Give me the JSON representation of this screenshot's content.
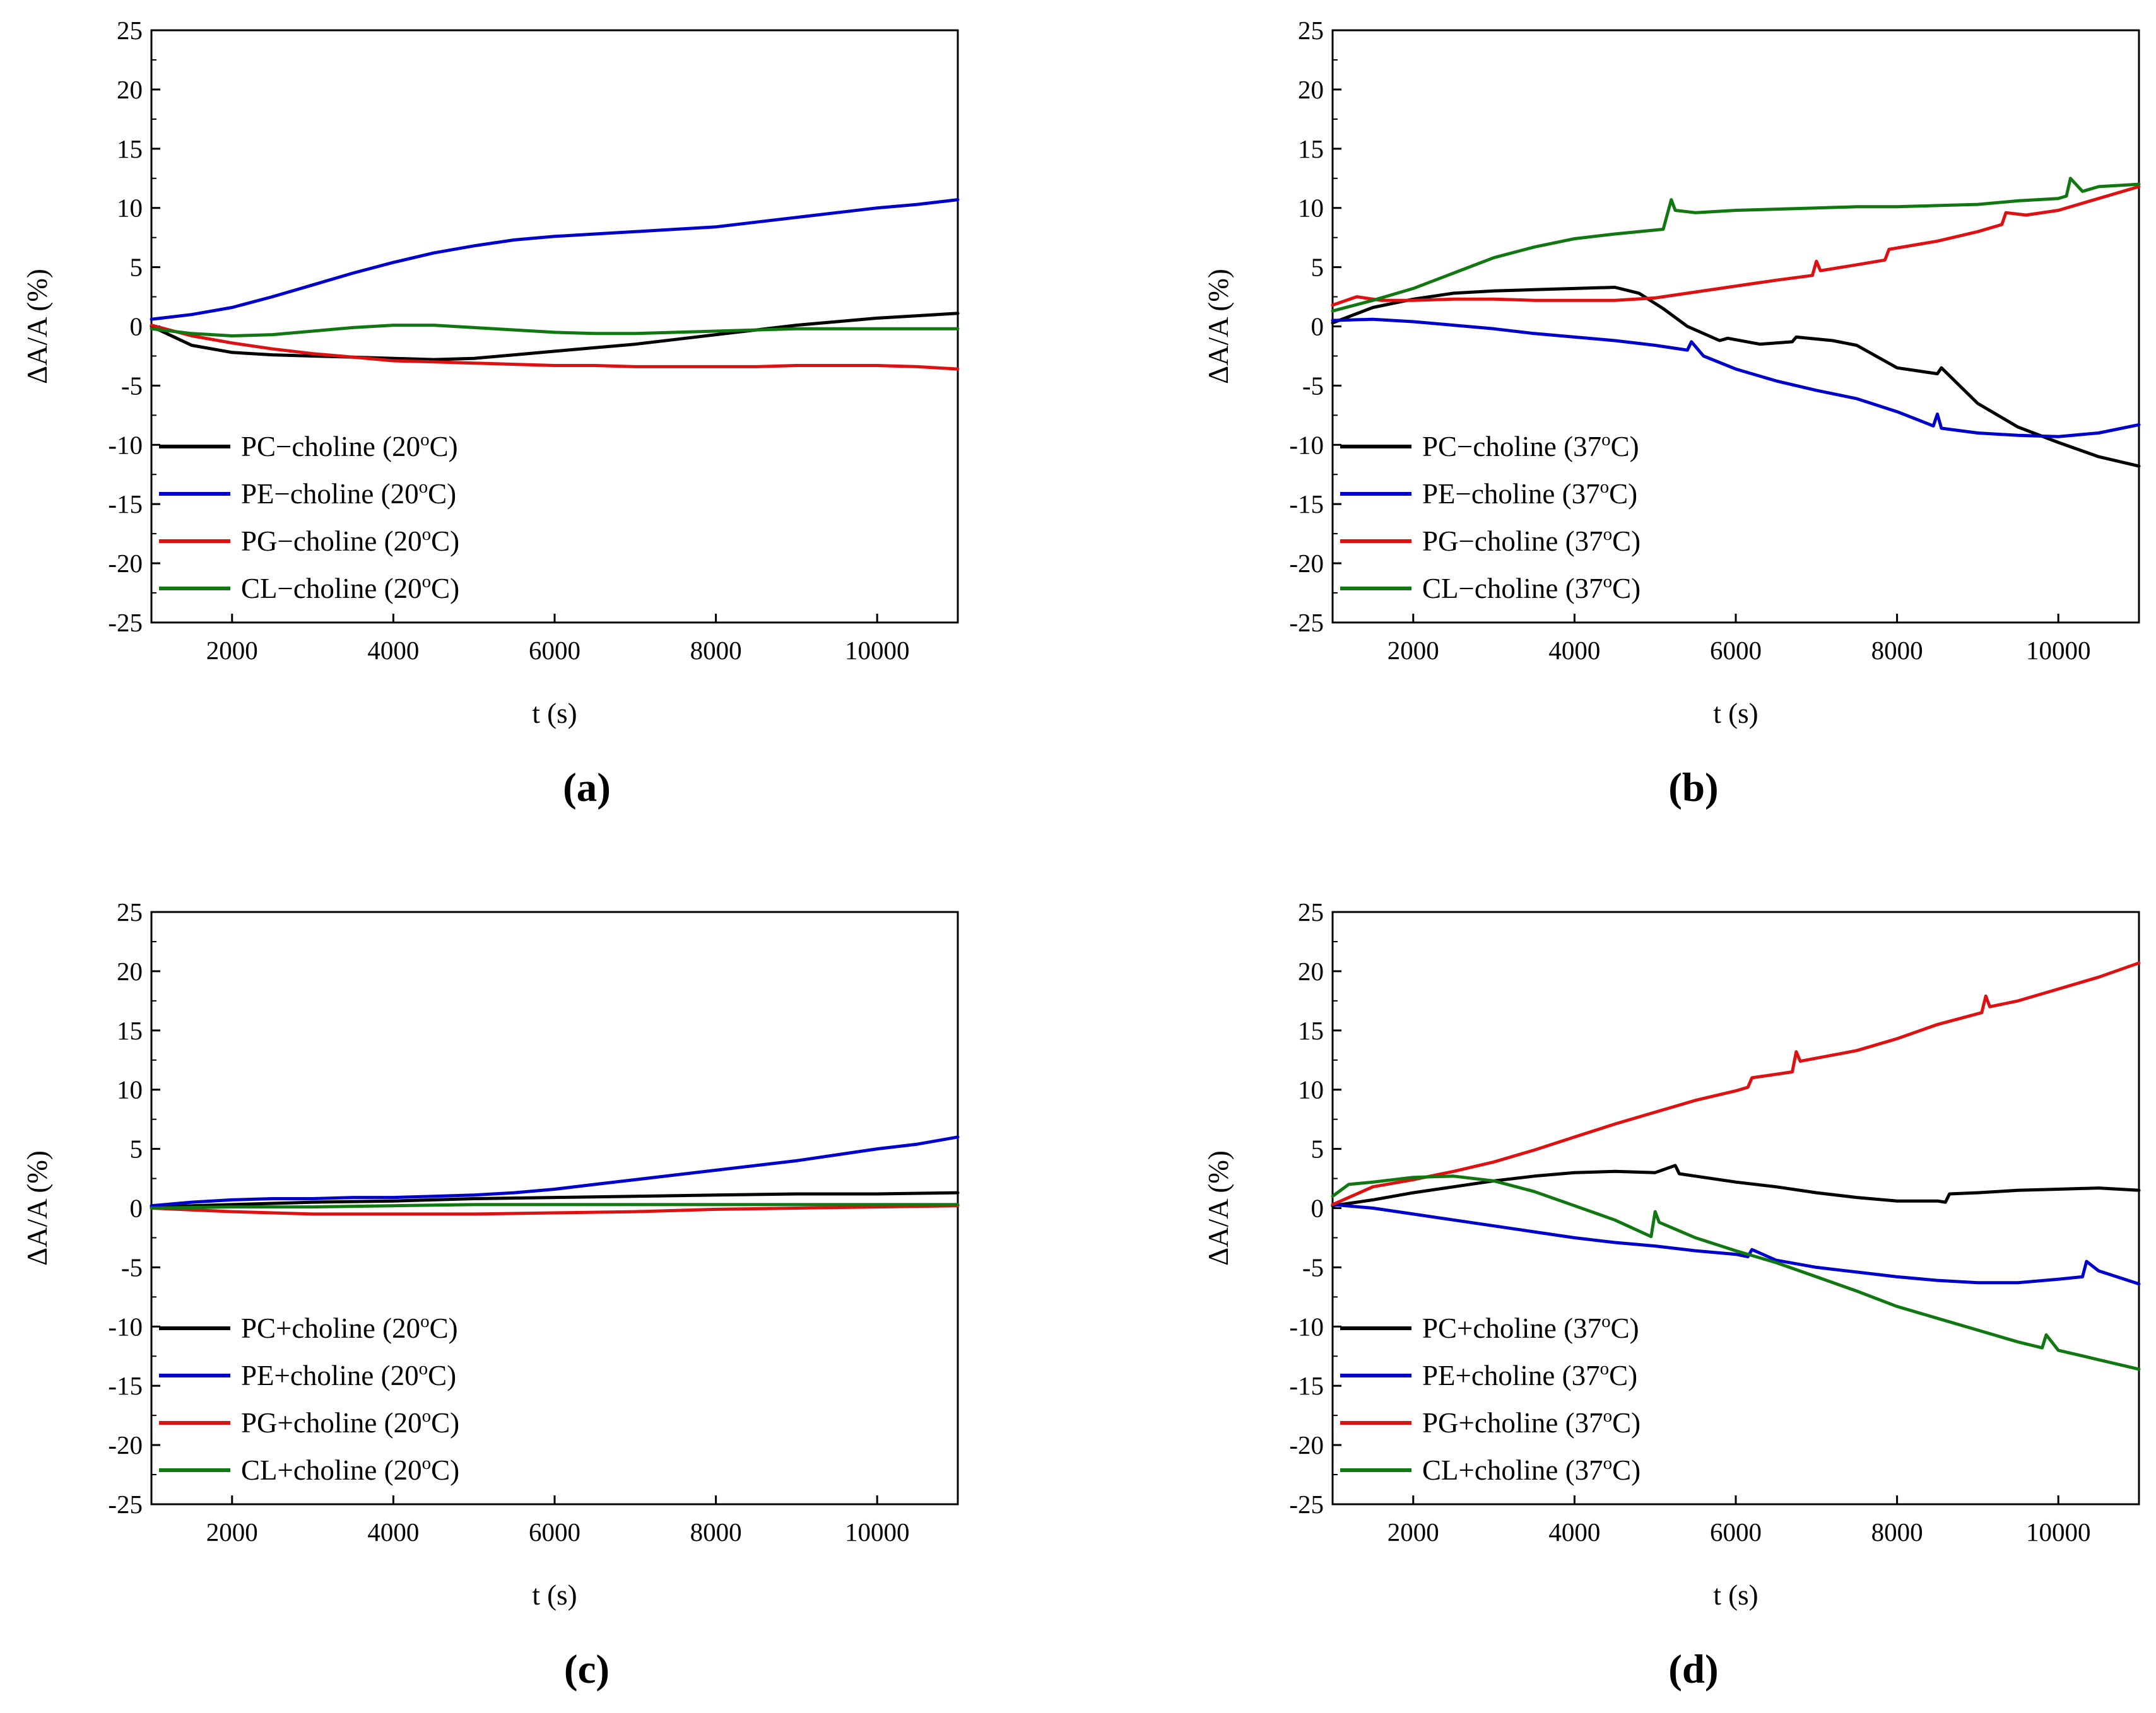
{
  "chart_data": [
    {
      "panel_label": "(a)",
      "type": "line",
      "xlabel": "t (s)",
      "ylabel": "ΔA/A (%)",
      "xlim": [
        1000,
        11000
      ],
      "ylim": [
        -25,
        25
      ],
      "xticks": [
        2000,
        4000,
        6000,
        8000,
        10000
      ],
      "yticks": [
        25,
        20,
        15,
        10,
        5,
        0,
        -5,
        -10,
        -15,
        -20,
        -25
      ],
      "grid": false,
      "legend_position": "lower-left",
      "series": [
        {
          "name": "PC−choline (20",
          "sup": "o",
          "suffix": "C)",
          "color": "#000000",
          "x": [
            1000,
            1500,
            2000,
            2500,
            3000,
            3500,
            4000,
            4500,
            5000,
            5500,
            6000,
            6500,
            7000,
            7500,
            8000,
            8500,
            9000,
            9500,
            10000,
            10500,
            11000
          ],
          "y": [
            0,
            -1.6,
            -2.2,
            -2.4,
            -2.5,
            -2.6,
            -2.7,
            -2.8,
            -2.7,
            -2.4,
            -2.1,
            -1.8,
            -1.5,
            -1.1,
            -0.7,
            -0.3,
            0.1,
            0.4,
            0.7,
            0.9,
            1.1
          ]
        },
        {
          "name": "PE−choline (20",
          "sup": "o",
          "suffix": "C)",
          "color": "#0000cc",
          "x": [
            1000,
            1500,
            2000,
            2500,
            3000,
            3500,
            4000,
            4500,
            5000,
            5500,
            6000,
            6500,
            7000,
            7500,
            8000,
            8500,
            9000,
            9500,
            10000,
            10500,
            11000
          ],
          "y": [
            0.6,
            1.0,
            1.6,
            2.5,
            3.5,
            4.5,
            5.4,
            6.2,
            6.8,
            7.3,
            7.6,
            7.8,
            8.0,
            8.2,
            8.4,
            8.8,
            9.2,
            9.6,
            10.0,
            10.3,
            10.7
          ]
        },
        {
          "name": "PG−choline (20",
          "sup": "o",
          "suffix": "C)",
          "color": "#dd1111",
          "x": [
            1000,
            1500,
            2000,
            2500,
            3000,
            3500,
            4000,
            4500,
            5000,
            5500,
            6000,
            6500,
            7000,
            7500,
            8000,
            8500,
            9000,
            9500,
            10000,
            10500,
            11000
          ],
          "y": [
            0.1,
            -0.8,
            -1.4,
            -1.9,
            -2.3,
            -2.6,
            -2.9,
            -3.0,
            -3.1,
            -3.2,
            -3.3,
            -3.3,
            -3.4,
            -3.4,
            -3.4,
            -3.4,
            -3.3,
            -3.3,
            -3.3,
            -3.4,
            -3.6
          ]
        },
        {
          "name": "CL−choline (20",
          "sup": "o",
          "suffix": "C)",
          "color": "#117711",
          "x": [
            1000,
            1500,
            2000,
            2500,
            3000,
            3500,
            4000,
            4500,
            5000,
            5500,
            6000,
            6500,
            7000,
            7500,
            8000,
            8500,
            9000,
            9500,
            10000,
            10500,
            11000
          ],
          "y": [
            -0.2,
            -0.6,
            -0.8,
            -0.7,
            -0.4,
            -0.1,
            0.1,
            0.1,
            -0.1,
            -0.3,
            -0.5,
            -0.6,
            -0.6,
            -0.5,
            -0.4,
            -0.3,
            -0.2,
            -0.2,
            -0.2,
            -0.2,
            -0.2
          ]
        }
      ]
    },
    {
      "panel_label": "(b)",
      "type": "line",
      "xlabel": "t (s)",
      "ylabel": "ΔA/A (%)",
      "xlim": [
        1000,
        11000
      ],
      "ylim": [
        -25,
        25
      ],
      "xticks": [
        2000,
        4000,
        6000,
        8000,
        10000
      ],
      "yticks": [
        25,
        20,
        15,
        10,
        5,
        0,
        -5,
        -10,
        -15,
        -20,
        -25
      ],
      "grid": false,
      "legend_position": "lower-left",
      "series": [
        {
          "name": "PC−choline (37",
          "sup": "o",
          "suffix": "C)",
          "color": "#000000",
          "x": [
            1000,
            1500,
            2000,
            2500,
            3000,
            3500,
            4000,
            4500,
            4800,
            5100,
            5400,
            5800,
            5900,
            6300,
            6700,
            6750,
            7200,
            7500,
            8000,
            8500,
            8550,
            9000,
            9500,
            10000,
            10500,
            11000
          ],
          "y": [
            0.3,
            1.6,
            2.3,
            2.8,
            3.0,
            3.1,
            3.2,
            3.3,
            2.8,
            1.5,
            0.0,
            -1.2,
            -1.0,
            -1.5,
            -1.3,
            -0.9,
            -1.2,
            -1.6,
            -3.5,
            -4.0,
            -3.5,
            -6.5,
            -8.5,
            -9.8,
            -11.0,
            -11.8
          ]
        },
        {
          "name": "PE−choline (37",
          "sup": "o",
          "suffix": "C)",
          "color": "#0000cc",
          "x": [
            1000,
            1500,
            2000,
            2500,
            3000,
            3500,
            4000,
            4500,
            5000,
            5400,
            5450,
            5600,
            6000,
            6500,
            7000,
            7500,
            8000,
            8450,
            8500,
            8550,
            9000,
            9500,
            10000,
            10500,
            11000
          ],
          "y": [
            0.5,
            0.6,
            0.4,
            0.1,
            -0.2,
            -0.6,
            -0.9,
            -1.2,
            -1.6,
            -2.0,
            -1.3,
            -2.5,
            -3.6,
            -4.6,
            -5.4,
            -6.1,
            -7.2,
            -8.4,
            -7.4,
            -8.6,
            -9.0,
            -9.2,
            -9.3,
            -9.0,
            -8.3
          ]
        },
        {
          "name": "PG−choline (37",
          "sup": "o",
          "suffix": "C)",
          "color": "#dd1111",
          "x": [
            1000,
            1300,
            1600,
            2000,
            2500,
            3000,
            3500,
            4000,
            4500,
            5000,
            5500,
            6000,
            6500,
            6950,
            7000,
            7050,
            7500,
            7850,
            7900,
            8500,
            9000,
            9300,
            9350,
            9600,
            10000,
            10500,
            11000
          ],
          "y": [
            1.8,
            2.5,
            2.2,
            2.2,
            2.3,
            2.3,
            2.2,
            2.2,
            2.2,
            2.4,
            2.9,
            3.4,
            3.9,
            4.3,
            5.5,
            4.7,
            5.2,
            5.6,
            6.5,
            7.2,
            8.0,
            8.6,
            9.6,
            9.4,
            9.8,
            10.8,
            11.8
          ]
        },
        {
          "name": "CL−choline (37",
          "sup": "o",
          "suffix": "C)",
          "color": "#117711",
          "x": [
            1000,
            1500,
            2000,
            2500,
            3000,
            3500,
            4000,
            4500,
            5100,
            5200,
            5250,
            5500,
            6000,
            6500,
            7000,
            7500,
            8000,
            8500,
            9000,
            9500,
            10000,
            10100,
            10150,
            10300,
            10500,
            11000
          ],
          "y": [
            1.3,
            2.2,
            3.2,
            4.5,
            5.8,
            6.7,
            7.4,
            7.8,
            8.2,
            10.7,
            9.8,
            9.6,
            9.8,
            9.9,
            10.0,
            10.1,
            10.1,
            10.2,
            10.3,
            10.6,
            10.8,
            11.0,
            12.5,
            11.4,
            11.8,
            12.0
          ]
        }
      ]
    },
    {
      "panel_label": "(c)",
      "type": "line",
      "xlabel": "t (s)",
      "ylabel": "ΔA/A (%)",
      "xlim": [
        1000,
        11000
      ],
      "ylim": [
        -25,
        25
      ],
      "xticks": [
        2000,
        4000,
        6000,
        8000,
        10000
      ],
      "yticks": [
        25,
        20,
        15,
        10,
        5,
        0,
        -5,
        -10,
        -15,
        -20,
        -25
      ],
      "grid": false,
      "legend_position": "lower-left",
      "series": [
        {
          "name": "PC+choline (20",
          "sup": "o",
          "suffix": "C)",
          "color": "#000000",
          "x": [
            1000,
            2000,
            3000,
            4000,
            5000,
            6000,
            7000,
            8000,
            9000,
            10000,
            11000
          ],
          "y": [
            0.1,
            0.3,
            0.5,
            0.6,
            0.8,
            0.9,
            1.0,
            1.1,
            1.2,
            1.2,
            1.3
          ]
        },
        {
          "name": "PE+choline (20",
          "sup": "o",
          "suffix": "C)",
          "color": "#0000cc",
          "x": [
            1000,
            1500,
            2000,
            2500,
            3000,
            3500,
            4000,
            4500,
            5000,
            5500,
            6000,
            6500,
            7000,
            7500,
            8000,
            8500,
            9000,
            9500,
            10000,
            10500,
            11000
          ],
          "y": [
            0.2,
            0.5,
            0.7,
            0.8,
            0.8,
            0.9,
            0.9,
            1.0,
            1.1,
            1.3,
            1.6,
            2.0,
            2.4,
            2.8,
            3.2,
            3.6,
            4.0,
            4.5,
            5.0,
            5.4,
            6.0
          ]
        },
        {
          "name": "PG+choline (20",
          "sup": "o",
          "suffix": "C)",
          "color": "#dd1111",
          "x": [
            1000,
            2000,
            3000,
            4000,
            5000,
            6000,
            7000,
            8000,
            9000,
            10000,
            11000
          ],
          "y": [
            0.0,
            -0.3,
            -0.5,
            -0.5,
            -0.5,
            -0.4,
            -0.3,
            -0.1,
            0.0,
            0.1,
            0.2
          ]
        },
        {
          "name": "CL+choline (20",
          "sup": "o",
          "suffix": "C)",
          "color": "#117711",
          "x": [
            1000,
            2000,
            3000,
            4000,
            5000,
            6000,
            7000,
            8000,
            9000,
            10000,
            11000
          ],
          "y": [
            0.0,
            0.1,
            0.1,
            0.2,
            0.3,
            0.3,
            0.3,
            0.3,
            0.3,
            0.3,
            0.3
          ]
        }
      ]
    },
    {
      "panel_label": "(d)",
      "type": "line",
      "xlabel": "t (s)",
      "ylabel": "ΔA/A (%)",
      "xlim": [
        1000,
        11000
      ],
      "ylim": [
        -25,
        25
      ],
      "xticks": [
        2000,
        4000,
        6000,
        8000,
        10000
      ],
      "yticks": [
        25,
        20,
        15,
        10,
        5,
        0,
        -5,
        -10,
        -15,
        -20,
        -25
      ],
      "grid": false,
      "legend_position": "lower-left",
      "series": [
        {
          "name": "PC+choline (37",
          "sup": "o",
          "suffix": "C)",
          "color": "#000000",
          "x": [
            1000,
            1500,
            2000,
            2500,
            3000,
            3500,
            4000,
            4500,
            5000,
            5250,
            5300,
            5500,
            6000,
            6500,
            7000,
            7500,
            8000,
            8500,
            8600,
            8650,
            9000,
            9500,
            10000,
            10500,
            11000
          ],
          "y": [
            0.2,
            0.7,
            1.3,
            1.8,
            2.3,
            2.7,
            3.0,
            3.1,
            3.0,
            3.6,
            2.9,
            2.7,
            2.2,
            1.8,
            1.3,
            0.9,
            0.6,
            0.6,
            0.5,
            1.2,
            1.3,
            1.5,
            1.6,
            1.7,
            1.5
          ]
        },
        {
          "name": "PE+choline (37",
          "sup": "o",
          "suffix": "C)",
          "color": "#0000cc",
          "x": [
            1000,
            1500,
            2000,
            2500,
            3000,
            3500,
            4000,
            4500,
            5000,
            5500,
            6000,
            6150,
            6200,
            6500,
            7000,
            7500,
            8000,
            8500,
            9000,
            9500,
            10000,
            10300,
            10350,
            10500,
            11000
          ],
          "y": [
            0.3,
            0.0,
            -0.5,
            -1.0,
            -1.5,
            -2.0,
            -2.5,
            -2.9,
            -3.2,
            -3.6,
            -3.9,
            -4.1,
            -3.5,
            -4.4,
            -5.0,
            -5.4,
            -5.8,
            -6.1,
            -6.3,
            -6.3,
            -6.0,
            -5.8,
            -4.5,
            -5.3,
            -6.4
          ]
        },
        {
          "name": "PG+choline (37",
          "sup": "o",
          "suffix": "C)",
          "color": "#dd1111",
          "x": [
            1000,
            1500,
            2000,
            2500,
            3000,
            3500,
            4000,
            4500,
            5000,
            5500,
            6000,
            6150,
            6200,
            6700,
            6750,
            6800,
            7500,
            8000,
            8500,
            9050,
            9100,
            9150,
            9500,
            10000,
            10500,
            11000
          ],
          "y": [
            0.3,
            1.8,
            2.4,
            3.1,
            3.9,
            4.9,
            6.0,
            7.1,
            8.1,
            9.1,
            9.9,
            10.2,
            11.0,
            11.5,
            13.2,
            12.4,
            13.3,
            14.3,
            15.5,
            16.5,
            17.9,
            17.0,
            17.5,
            18.5,
            19.5,
            20.7
          ]
        },
        {
          "name": "CL+choline (37",
          "sup": "o",
          "suffix": "C)",
          "color": "#117711",
          "x": [
            1000,
            1200,
            1500,
            2000,
            2500,
            3000,
            3500,
            4000,
            4500,
            4950,
            5000,
            5050,
            5500,
            6000,
            6500,
            7000,
            7500,
            8000,
            8500,
            9000,
            9500,
            9800,
            9850,
            10000,
            10500,
            11000
          ],
          "y": [
            1.0,
            2.0,
            2.2,
            2.6,
            2.7,
            2.3,
            1.4,
            0.2,
            -1.0,
            -2.4,
            -0.3,
            -1.2,
            -2.5,
            -3.6,
            -4.6,
            -5.8,
            -7.0,
            -8.3,
            -9.3,
            -10.3,
            -11.3,
            -11.8,
            -10.7,
            -12.0,
            -12.8,
            -13.6
          ]
        }
      ]
    }
  ]
}
